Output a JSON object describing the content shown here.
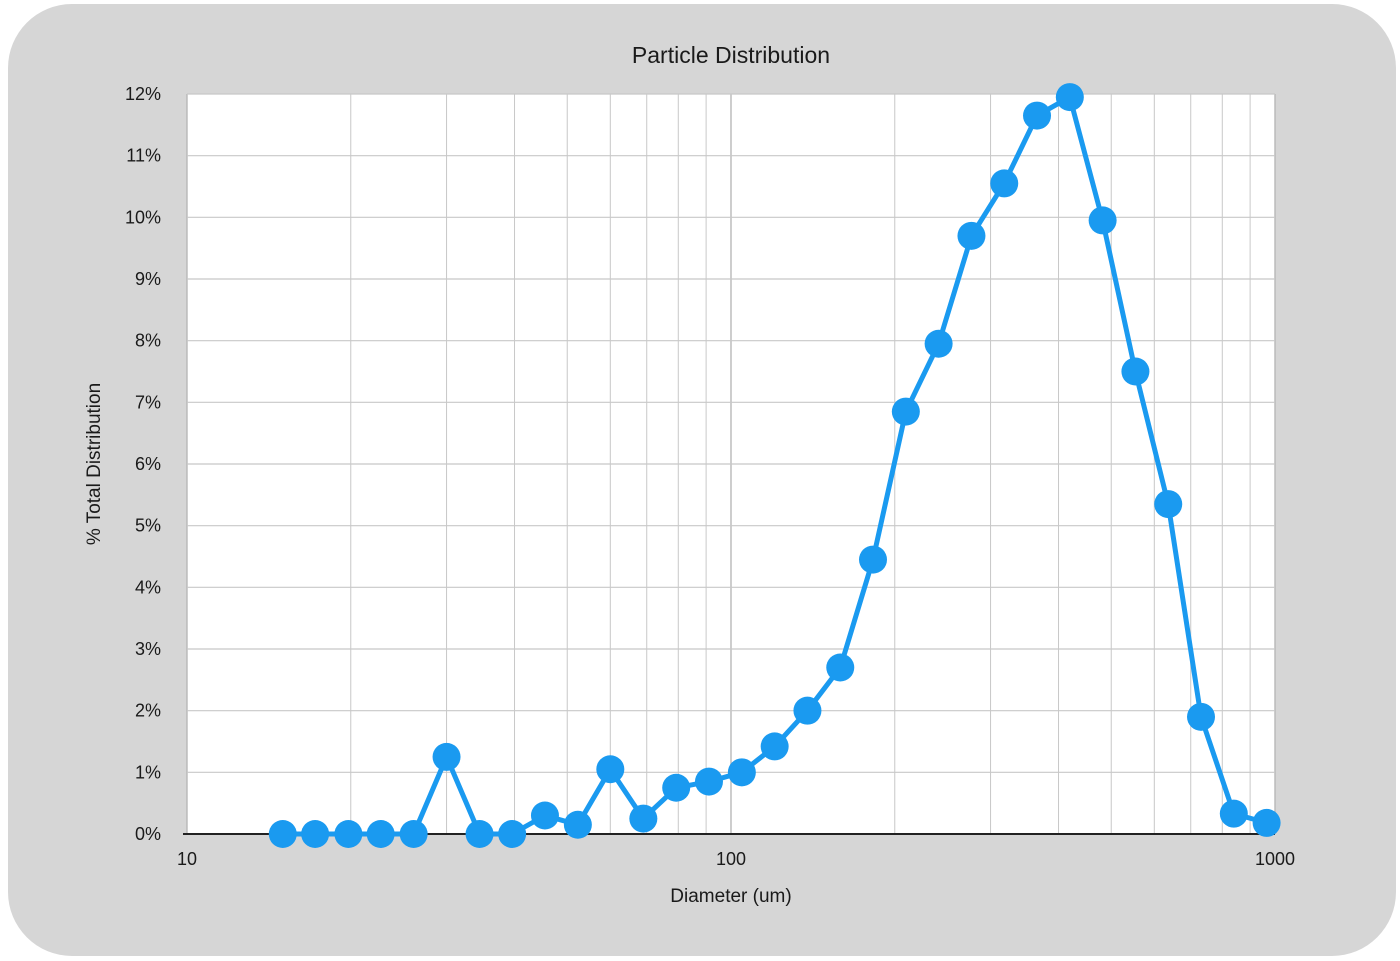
{
  "chart_data": {
    "type": "line",
    "title": "Particle Distribution",
    "xlabel": "Diameter (um)",
    "ylabel": "% Total Distribution",
    "x_scale": "log",
    "xlim": [
      10,
      1000
    ],
    "ylim": [
      0,
      12
    ],
    "x_ticks": [
      "10",
      "100",
      "1000"
    ],
    "y_ticks": [
      "0%",
      "1%",
      "2%",
      "3%",
      "4%",
      "5%",
      "6%",
      "7%",
      "8%",
      "9%",
      "10%",
      "11%",
      "12%"
    ],
    "grid": true,
    "legend": "none",
    "colors": {
      "series": "#1a9af0",
      "grid": "#c8c8c8",
      "axis": "#222222",
      "plot_bg": "#ffffff",
      "frame_bg": "#d6d6d6"
    },
    "series": [
      {
        "x": [
          15.0,
          17.2,
          19.8,
          22.7,
          26.1,
          30.0,
          34.5,
          39.6,
          45.5,
          52.3,
          60.0,
          69.0,
          79.3,
          91.1,
          104.7,
          120.3,
          138.2,
          158.8,
          182.4,
          209.6,
          240.8,
          276.7,
          317.9,
          365.2,
          419.6,
          482.1,
          553.9,
          636.4,
          731.1,
          840.0,
          965.1
        ],
        "values": [
          0.0,
          0.0,
          0.0,
          0.0,
          0.0,
          1.25,
          0.0,
          0.0,
          0.3,
          0.15,
          1.05,
          0.25,
          0.75,
          0.85,
          1.0,
          1.42,
          2.0,
          2.7,
          4.45,
          6.85,
          7.95,
          9.7,
          10.55,
          11.65,
          11.95,
          9.95,
          7.5,
          5.35,
          1.9,
          0.33,
          0.18
        ]
      }
    ]
  }
}
